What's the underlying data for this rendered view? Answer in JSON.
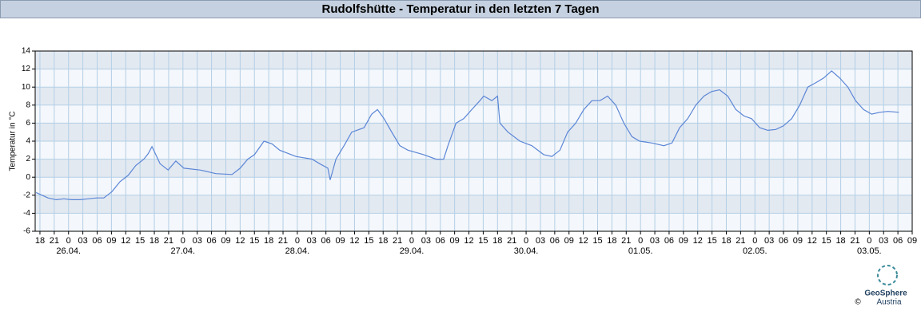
{
  "chart_data": {
    "type": "line",
    "title": "Rudolfshütte - Temperatur in den letzten 7 Tagen",
    "y_label": "Temperatur in °C",
    "x": [
      17.2,
      18.0,
      19.7,
      21.4,
      23.0,
      24.7,
      26.4,
      28.1,
      29.9,
      31.4,
      33.1,
      34.8,
      36.5,
      38.1,
      39.8,
      40.7,
      41.5,
      43.2,
      44.9,
      46.5,
      48.2,
      51.6,
      54.9,
      58.3,
      60.0,
      61.6,
      63.0,
      65.0,
      66.7,
      68.3,
      71.7,
      75.1,
      76.7,
      78.4,
      78.9,
      80.1,
      81.8,
      83.4,
      86.0,
      87.6,
      88.8,
      90.2,
      91.8,
      93.5,
      95.2,
      98.5,
      101.1,
      102.7,
      103.6,
      105.3,
      106.9,
      108.6,
      110.3,
      111.1,
      112.8,
      114.0,
      114.5,
      116.2,
      118.7,
      121.2,
      123.7,
      125.4,
      127.1,
      128.7,
      130.4,
      132.1,
      133.8,
      135.5,
      137.1,
      138.8,
      140.5,
      142.2,
      143.8,
      146.4,
      148.9,
      150.6,
      152.2,
      153.9,
      155.6,
      157.3,
      158.9,
      160.6,
      162.3,
      164.0,
      165.7,
      167.3,
      169.0,
      170.7,
      172.4,
      174.0,
      175.7,
      177.4,
      179.1,
      180.8,
      182.4,
      184.1,
      185.8,
      187.5,
      189.1,
      190.8,
      192.5,
      194.2,
      195.9,
      198.2
    ],
    "series": [
      {
        "name": "Temperatur",
        "color": "#5b86d6",
        "values": [
          -1.7,
          -1.9,
          -2.3,
          -2.5,
          -2.4,
          -2.5,
          -2.5,
          -2.4,
          -2.3,
          -2.3,
          -1.6,
          -0.5,
          0.2,
          1.3,
          2.0,
          2.6,
          3.4,
          1.5,
          0.8,
          1.8,
          1.0,
          0.8,
          0.4,
          0.3,
          1.0,
          2.0,
          2.5,
          4.0,
          3.7,
          3.0,
          2.3,
          2.0,
          1.5,
          1.0,
          -0.3,
          2.0,
          3.5,
          5.0,
          5.5,
          7.0,
          7.5,
          6.5,
          5.0,
          3.5,
          3.0,
          2.5,
          2.0,
          2.0,
          3.5,
          6.0,
          6.5,
          7.5,
          8.5,
          9.0,
          8.5,
          9.0,
          6.0,
          5.0,
          4.0,
          3.5,
          2.5,
          2.3,
          3.0,
          5.0,
          6.0,
          7.5,
          8.5,
          8.5,
          9.0,
          8.0,
          6.0,
          4.5,
          4.0,
          3.8,
          3.5,
          3.8,
          5.5,
          6.5,
          8.0,
          9.0,
          9.5,
          9.7,
          9.0,
          7.5,
          6.8,
          6.5,
          5.5,
          5.2,
          5.3,
          5.7,
          6.5,
          8.0,
          10.0,
          10.5,
          11.0,
          11.8,
          11.0,
          10.0,
          8.5,
          7.5,
          7.0,
          7.2,
          7.3,
          7.2
        ]
      }
    ],
    "xlim": [
      17,
      201
    ],
    "xticks": [
      {
        "value": 18,
        "label": "18"
      },
      {
        "value": 21,
        "label": "21"
      },
      {
        "value": 24,
        "label": "0"
      },
      {
        "value": 27,
        "label": "03"
      },
      {
        "value": 30,
        "label": "06"
      },
      {
        "value": 33,
        "label": "09"
      },
      {
        "value": 36,
        "label": "12"
      },
      {
        "value": 39,
        "label": "15"
      },
      {
        "value": 42,
        "label": "18"
      },
      {
        "value": 45,
        "label": "21"
      },
      {
        "value": 48,
        "label": "0"
      },
      {
        "value": 51,
        "label": "03"
      },
      {
        "value": 54,
        "label": "06"
      },
      {
        "value": 57,
        "label": "09"
      },
      {
        "value": 60,
        "label": "12"
      },
      {
        "value": 63,
        "label": "15"
      },
      {
        "value": 66,
        "label": "18"
      },
      {
        "value": 69,
        "label": "21"
      },
      {
        "value": 72,
        "label": "0"
      },
      {
        "value": 75,
        "label": "03"
      },
      {
        "value": 78,
        "label": "06"
      },
      {
        "value": 81,
        "label": "09"
      },
      {
        "value": 84,
        "label": "12"
      },
      {
        "value": 87,
        "label": "15"
      },
      {
        "value": 90,
        "label": "18"
      },
      {
        "value": 93,
        "label": "21"
      },
      {
        "value": 96,
        "label": "0"
      },
      {
        "value": 99,
        "label": "03"
      },
      {
        "value": 102,
        "label": "06"
      },
      {
        "value": 105,
        "label": "09"
      },
      {
        "value": 108,
        "label": "12"
      },
      {
        "value": 111,
        "label": "15"
      },
      {
        "value": 114,
        "label": "18"
      },
      {
        "value": 117,
        "label": "21"
      },
      {
        "value": 120,
        "label": "0"
      },
      {
        "value": 123,
        "label": "03"
      },
      {
        "value": 126,
        "label": "06"
      },
      {
        "value": 129,
        "label": "09"
      },
      {
        "value": 132,
        "label": "12"
      },
      {
        "value": 135,
        "label": "15"
      },
      {
        "value": 138,
        "label": "18"
      },
      {
        "value": 141,
        "label": "21"
      },
      {
        "value": 144,
        "label": "0"
      },
      {
        "value": 147,
        "label": "03"
      },
      {
        "value": 150,
        "label": "06"
      },
      {
        "value": 153,
        "label": "09"
      },
      {
        "value": 156,
        "label": "12"
      },
      {
        "value": 159,
        "label": "15"
      },
      {
        "value": 162,
        "label": "18"
      },
      {
        "value": 165,
        "label": "21"
      },
      {
        "value": 168,
        "label": "0"
      },
      {
        "value": 171,
        "label": "03"
      },
      {
        "value": 174,
        "label": "06"
      },
      {
        "value": 177,
        "label": "09"
      },
      {
        "value": 180,
        "label": "12"
      },
      {
        "value": 183,
        "label": "15"
      },
      {
        "value": 186,
        "label": "18"
      },
      {
        "value": 189,
        "label": "21"
      },
      {
        "value": 192,
        "label": "0"
      },
      {
        "value": 195,
        "label": "03"
      },
      {
        "value": 198,
        "label": "06"
      },
      {
        "value": 201,
        "label": "09"
      }
    ],
    "date_labels": [
      {
        "value": 24,
        "label": "26.04."
      },
      {
        "value": 48,
        "label": "27.04."
      },
      {
        "value": 72,
        "label": "28.04."
      },
      {
        "value": 96,
        "label": "29.04."
      },
      {
        "value": 120,
        "label": "30.04."
      },
      {
        "value": 144,
        "label": "01.05."
      },
      {
        "value": 168,
        "label": "02.05."
      },
      {
        "value": 192,
        "label": "03.05."
      }
    ],
    "ylim": [
      -6,
      14
    ],
    "yticks": [
      -6,
      -4,
      -2,
      0,
      2,
      4,
      6,
      8,
      10,
      12,
      14
    ],
    "grid": true
  },
  "logo": {
    "name": "GeoSphere",
    "country": "Austria",
    "copyright": "©"
  }
}
